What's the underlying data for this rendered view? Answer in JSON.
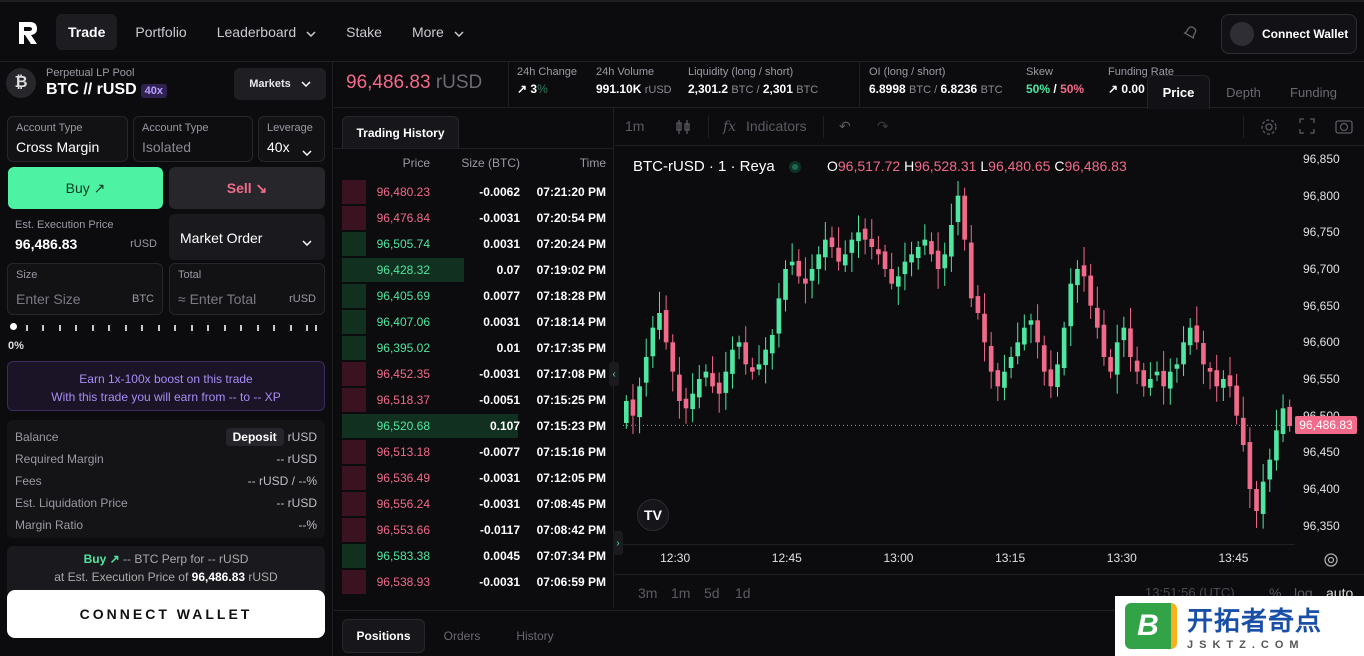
{
  "nav": {
    "items": [
      {
        "label": "Trade",
        "active": true,
        "dropdown": false
      },
      {
        "label": "Portfolio",
        "active": false,
        "dropdown": false
      },
      {
        "label": "Leaderboard",
        "active": false,
        "dropdown": true
      },
      {
        "label": "Stake",
        "active": false,
        "dropdown": false
      },
      {
        "label": "More",
        "active": false,
        "dropdown": true
      }
    ],
    "connect_label": "Connect Wallet"
  },
  "pool": {
    "label": "Perpetual LP Pool",
    "pair": "BTC // rUSD",
    "leverage_tag": "40x",
    "markets_label": "Markets"
  },
  "order": {
    "account_type_1": {
      "label": "Account Type",
      "value": "Cross Margin"
    },
    "account_type_2": {
      "label": "Account Type",
      "value": "Isolated"
    },
    "leverage": {
      "label": "Leverage",
      "value": "40x"
    },
    "buy_label": "Buy ↗",
    "sell_label": "Sell ↘",
    "exec_price": {
      "label": "Est. Execution Price",
      "value": "96,486.83",
      "unit": "rUSD"
    },
    "order_type": "Market Order",
    "size": {
      "label": "Size",
      "placeholder": "Enter Size",
      "unit": "BTC"
    },
    "total": {
      "label": "Total",
      "placeholder": "≈ Enter Total",
      "unit": "rUSD"
    },
    "slider_value": "0%",
    "slider_fraction": 0,
    "boost_line1": "Earn 1x-100x boost on this trade",
    "boost_line2": "With this trade you will earn from -- to -- XP"
  },
  "details": {
    "balance_label": "Balance",
    "deposit_label": "Deposit",
    "balance_unit": "rUSD",
    "required_margin_label": "Required Margin",
    "required_margin_value": "-- rUSD",
    "fees_label": "Fees",
    "fees_value": "-- rUSD / --%",
    "liq_label": "Est. Liquidation Price",
    "liq_value": "-- rUSD",
    "margin_ratio_label": "Margin Ratio",
    "margin_ratio_value": "--%"
  },
  "summary": {
    "buy": "Buy ↗",
    "line1_rest": "-- BTC Perp for -- rUSD",
    "line2_prefix": "at Est. Execution Price of",
    "line2_price": "96,486.83",
    "line2_unit": "rUSD"
  },
  "connect_main_label": "CONNECT WALLET",
  "stats": {
    "price": "96,486.83",
    "price_unit": "rUSD",
    "change": {
      "label": "24h Change",
      "value": "↗ 3",
      "unit": "%"
    },
    "volume": {
      "label": "24h Volume",
      "value": "991.10K",
      "unit": "rUSD"
    },
    "liquidity": {
      "label": "Liquidity (long / short)",
      "v1": "2,301.2",
      "u1": "BTC /",
      "v2": "2,301",
      "u2": "BTC"
    },
    "oi": {
      "label": "OI (long / short)",
      "v1": "6.8998",
      "u1": "BTC /",
      "v2": "6.8236",
      "u2": "BTC"
    },
    "skew": {
      "label": "Skew",
      "long": "50%",
      "sep": "/",
      "short": "50%"
    },
    "funding": {
      "label": "Funding Rate",
      "value": "↗ 0.00"
    }
  },
  "right_tabs": [
    "Price",
    "Depth",
    "Funding"
  ],
  "history": {
    "tab": "Trading History",
    "headers": [
      "Price",
      "Size (BTC)",
      "Time"
    ],
    "rows": [
      {
        "price": "96,480.23",
        "size": "-0.0062",
        "time": "07:21:20 PM",
        "side": "sell",
        "depth": 0.09
      },
      {
        "price": "96,476.84",
        "size": "-0.0031",
        "time": "07:20:54 PM",
        "side": "sell",
        "depth": 0.09
      },
      {
        "price": "96,505.74",
        "size": "0.0031",
        "time": "07:20:24 PM",
        "side": "buy",
        "depth": 0.09
      },
      {
        "price": "96,428.32",
        "size": "0.07",
        "time": "07:19:02 PM",
        "side": "buy",
        "depth": 0.46
      },
      {
        "price": "96,405.69",
        "size": "0.0077",
        "time": "07:18:28 PM",
        "side": "buy",
        "depth": 0.09
      },
      {
        "price": "96,407.06",
        "size": "0.0031",
        "time": "07:18:14 PM",
        "side": "buy",
        "depth": 0.09
      },
      {
        "price": "96,395.02",
        "size": "0.01",
        "time": "07:17:35 PM",
        "side": "buy",
        "depth": 0.09
      },
      {
        "price": "96,452.35",
        "size": "-0.0031",
        "time": "07:17:08 PM",
        "side": "sell",
        "depth": 0.09
      },
      {
        "price": "96,518.37",
        "size": "-0.0051",
        "time": "07:15:25 PM",
        "side": "sell",
        "depth": 0.09
      },
      {
        "price": "96,520.68",
        "size": "0.107",
        "time": "07:15:23 PM",
        "side": "buy",
        "depth": 0.66
      },
      {
        "price": "96,513.18",
        "size": "-0.0077",
        "time": "07:15:16 PM",
        "side": "sell",
        "depth": 0.09
      },
      {
        "price": "96,536.49",
        "size": "-0.0031",
        "time": "07:12:05 PM",
        "side": "sell",
        "depth": 0.09
      },
      {
        "price": "96,556.24",
        "size": "-0.0031",
        "time": "07:08:45 PM",
        "side": "sell",
        "depth": 0.09
      },
      {
        "price": "96,553.66",
        "size": "-0.0117",
        "time": "07:08:42 PM",
        "side": "sell",
        "depth": 0.09
      },
      {
        "price": "96,583.38",
        "size": "0.0045",
        "time": "07:07:34 PM",
        "side": "buy",
        "depth": 0.09
      },
      {
        "price": "96,538.93",
        "size": "-0.0031",
        "time": "07:06:59 PM",
        "side": "sell",
        "depth": 0.09
      }
    ]
  },
  "chart": {
    "toolbar": {
      "interval": "1m",
      "indicators": "Indicators"
    },
    "symbol": "BTC-rUSD · 1 · Reya",
    "ohlc": {
      "o": "96,517.72",
      "h": "96,528.31",
      "l": "96,480.65",
      "c": "96,486.83"
    },
    "current_price_label": "96,486.83",
    "bottom": {
      "ranges": [
        "3m",
        "1m",
        "5d",
        "1d"
      ],
      "clock": "13:51:56 (UTC)",
      "pct": "%",
      "log": "log",
      "auto": "auto"
    },
    "colors": {
      "up": "#4ee6a0",
      "down": "#f26a8a"
    }
  },
  "chart_data": {
    "type": "candlestick",
    "title": "BTC-rUSD · 1 · Reya",
    "ylim": [
      96325,
      96865
    ],
    "y_ticks": [
      "96,850",
      "96,800",
      "96,750",
      "96,700",
      "96,650",
      "96,600",
      "96,550",
      "96,500",
      "96,450",
      "96,400",
      "96,350"
    ],
    "y_tick_values": [
      96850,
      96800,
      96750,
      96700,
      96650,
      96600,
      96550,
      96500,
      96450,
      96400,
      96350
    ],
    "x_ticks": [
      "12:30",
      "12:45",
      "13:00",
      "13:15",
      "13:30",
      "13:45"
    ],
    "x_range_minutes": [
      "12:23",
      "13:53"
    ],
    "x_tick_minutes": [
      30,
      45,
      60,
      75,
      90,
      105
    ],
    "last_price": 96486.83,
    "candle_closes": [
      96520,
      96500,
      96540,
      96580,
      96620,
      96640,
      96600,
      96560,
      96520,
      96510,
      96530,
      96550,
      96560,
      96540,
      96530,
      96560,
      96590,
      96600,
      96570,
      96560,
      96570,
      96590,
      96610,
      96660,
      96700,
      96710,
      96690,
      96680,
      96700,
      96720,
      96740,
      96730,
      96710,
      96720,
      96740,
      96750,
      96740,
      96730,
      96720,
      96700,
      96680,
      96690,
      96710,
      96720,
      96730,
      96740,
      96720,
      96700,
      96720,
      96760,
      96800,
      96740,
      96660,
      96640,
      96600,
      96560,
      96540,
      96560,
      96580,
      96600,
      96620,
      96630,
      96600,
      96560,
      96540,
      96570,
      96620,
      96680,
      96700,
      96690,
      96650,
      96620,
      96580,
      96560,
      96600,
      96620,
      96580,
      96560,
      96540,
      96550,
      96560,
      96540,
      96560,
      96570,
      96600,
      96620,
      96600,
      96570,
      96560,
      96540,
      96550,
      96540,
      96500,
      96460,
      96400,
      96370,
      96410,
      96440,
      96480,
      96510,
      96486
    ]
  },
  "bottom_tabs": [
    "Positions",
    "Orders",
    "History"
  ],
  "watermark": {
    "line1": "开拓者奇点",
    "line2": "JSKTZ.COM",
    "logo_letter": "B"
  }
}
